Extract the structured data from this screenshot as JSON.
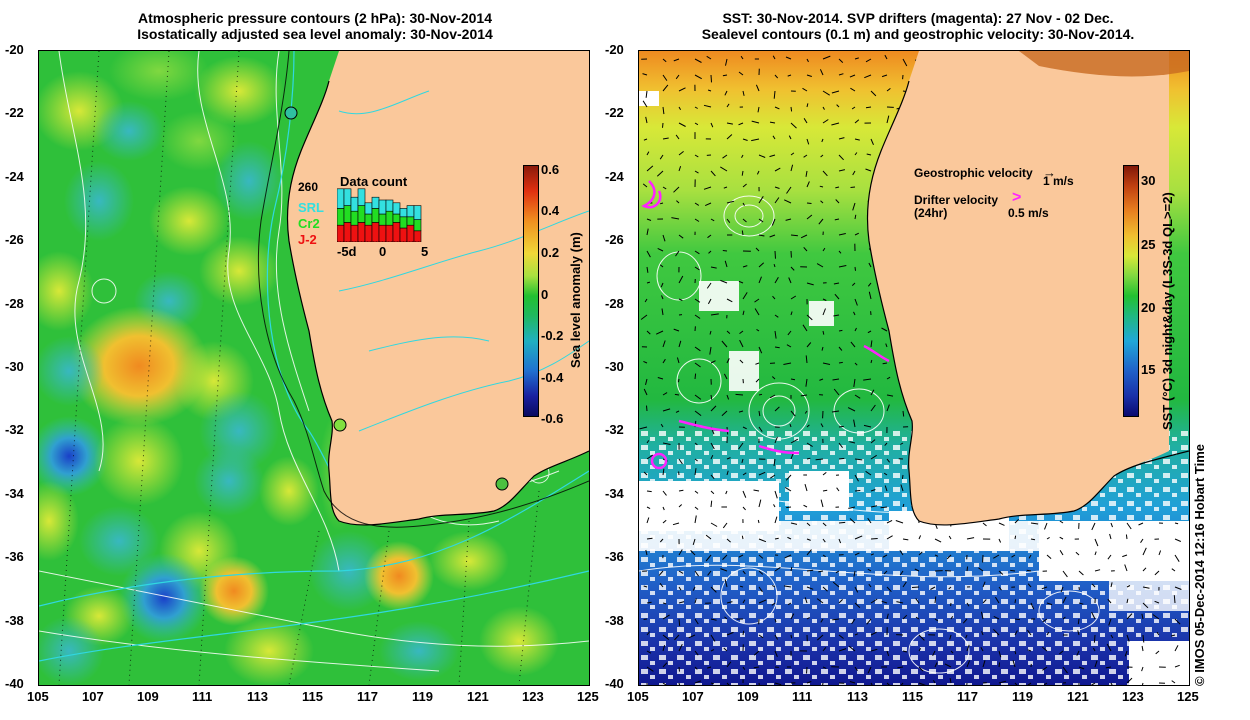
{
  "left_panel": {
    "title_line1": "Atmospheric pressure contours (2 hPa): 30-Nov-2014",
    "title_line2": "Isostatically adjusted sea level anomaly: 30-Nov-2014",
    "colorbar_label": "Sea level anomaly (m)",
    "colorbar_ticks": [
      "0.6",
      "0.4",
      "0.2",
      "0",
      "-0.2",
      "-0.4",
      "-0.6"
    ],
    "inset": {
      "title": "Data count",
      "max_label": "260",
      "legend": [
        {
          "name": "SRL",
          "color": "#33e0e0"
        },
        {
          "name": "Cr2",
          "color": "#22dd22"
        },
        {
          "name": "J-2",
          "color": "#ee1111"
        }
      ],
      "x_ticks": [
        "-5d",
        "0",
        "5"
      ],
      "bars": [
        {
          "j2": 0.3,
          "cr2": 0.3,
          "srl": 0.35
        },
        {
          "j2": 0.35,
          "cr2": 0.3,
          "srl": 0.3
        },
        {
          "j2": 0.3,
          "cr2": 0.25,
          "srl": 0.25
        },
        {
          "j2": 0.35,
          "cr2": 0.3,
          "srl": 0.3
        },
        {
          "j2": 0.3,
          "cr2": 0.2,
          "srl": 0.2
        },
        {
          "j2": 0.35,
          "cr2": 0.25,
          "srl": 0.2
        },
        {
          "j2": 0.3,
          "cr2": 0.2,
          "srl": 0.25
        },
        {
          "j2": 0.3,
          "cr2": 0.25,
          "srl": 0.2
        },
        {
          "j2": 0.35,
          "cr2": 0.15,
          "srl": 0.2
        },
        {
          "j2": 0.25,
          "cr2": 0.2,
          "srl": 0.15
        },
        {
          "j2": 0.3,
          "cr2": 0.15,
          "srl": 0.2
        },
        {
          "j2": 0.2,
          "cr2": 0.2,
          "srl": 0.25
        }
      ]
    }
  },
  "right_panel": {
    "title_line1": "SST: 30-Nov-2014. SVP drifters (magenta): 27 Nov - 02 Dec.",
    "title_line2": "Sealevel contours (0.1 m) and geostrophic velocity: 30-Nov-2014.",
    "colorbar_label": "SST (°C) 3d night&day (L3S-3d QL>=2)",
    "colorbar_ticks": [
      "30",
      "25",
      "20",
      "15"
    ],
    "geostrophic_label": "Geostrophic velocity",
    "geostrophic_scale": "1 m/s",
    "drifter_label": "Drifter velocity",
    "drifter_sub": "(24hr)",
    "drifter_scale": "0.5 m/s"
  },
  "axes": {
    "lat_ticks": [
      "-20",
      "-22",
      "-24",
      "-26",
      "-28",
      "-30",
      "-32",
      "-34",
      "-36",
      "-38",
      "-40"
    ],
    "lon_ticks": [
      "105",
      "107",
      "109",
      "111",
      "113",
      "115",
      "117",
      "119",
      "121",
      "123",
      "125"
    ]
  },
  "credit": "© IMOS 05-Dec-2014 12:16 Hobart Time",
  "colors": {
    "land": "#fac89b",
    "sla_ocean": "#2fc03a",
    "sst_warm": "#ee9a30",
    "sst_mid": "#22c43a",
    "sst_cool": "#1a4fc0",
    "drifter": "#ff22ff",
    "coast_contour": "#30d8e0"
  }
}
